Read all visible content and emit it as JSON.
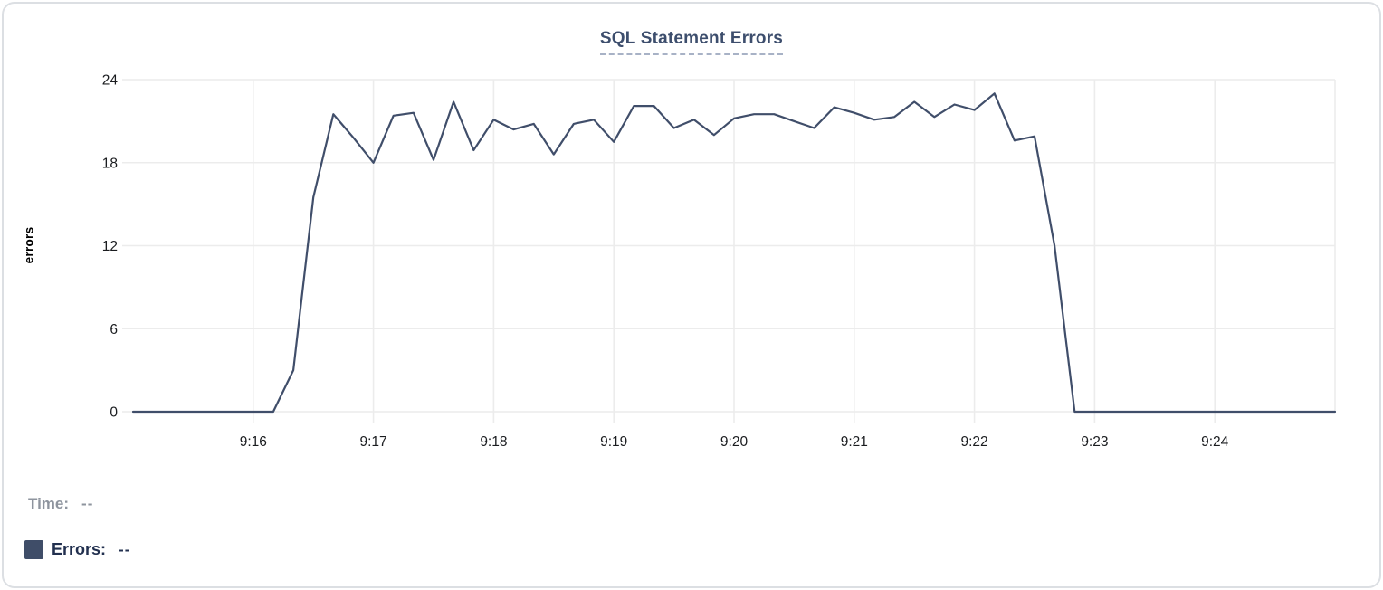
{
  "chart": {
    "title": "SQL Statement Errors",
    "ylabel": "errors"
  },
  "tooltip": {
    "time_label": "Time:",
    "time_value": "--",
    "errors_label": "Errors:",
    "errors_value": "--"
  },
  "colors": {
    "line": "#404e6a",
    "title": "#3d4e6d",
    "grid": "#ececec",
    "axis_text": "#1a1c1f",
    "time_muted": "#8e949e",
    "errors_text": "#22304f",
    "swatch": "#3f4d68",
    "title_underline": "#a8b2c6",
    "card_border": "#dcdfe3"
  },
  "chart_data": {
    "type": "line",
    "title": "SQL Statement Errors",
    "xlabel": "",
    "ylabel": "errors",
    "ylim": [
      0,
      24
    ],
    "y_ticks": [
      0,
      6,
      12,
      18,
      24
    ],
    "x_ticks": [
      "9:16",
      "9:17",
      "9:18",
      "9:19",
      "9:20",
      "9:21",
      "9:22",
      "9:23",
      "9:24"
    ],
    "x_range": [
      "9:15:00",
      "9:25:00"
    ],
    "grid": true,
    "legend_position": "bottom-left",
    "series": [
      {
        "name": "Errors",
        "color": "#404e6a",
        "x": [
          "9:15:00",
          "9:15:10",
          "9:15:20",
          "9:15:30",
          "9:15:40",
          "9:15:50",
          "9:16:00",
          "9:16:10",
          "9:16:20",
          "9:16:30",
          "9:16:40",
          "9:16:50",
          "9:17:00",
          "9:17:10",
          "9:17:20",
          "9:17:30",
          "9:17:40",
          "9:17:50",
          "9:18:00",
          "9:18:10",
          "9:18:20",
          "9:18:30",
          "9:18:40",
          "9:18:50",
          "9:19:00",
          "9:19:10",
          "9:19:20",
          "9:19:30",
          "9:19:40",
          "9:19:50",
          "9:20:00",
          "9:20:10",
          "9:20:20",
          "9:20:30",
          "9:20:40",
          "9:20:50",
          "9:21:00",
          "9:21:10",
          "9:21:20",
          "9:21:30",
          "9:21:40",
          "9:21:50",
          "9:22:00",
          "9:22:10",
          "9:22:20",
          "9:22:30",
          "9:22:40",
          "9:22:50",
          "9:23:00",
          "9:23:10",
          "9:23:20",
          "9:23:30",
          "9:23:40",
          "9:23:50",
          "9:24:00",
          "9:24:10",
          "9:24:20",
          "9:24:30",
          "9:24:40",
          "9:24:50",
          "9:25:00"
        ],
        "values": [
          0,
          0,
          0,
          0,
          0,
          0,
          0,
          0,
          3,
          15.5,
          21.5,
          19.8,
          18,
          21.4,
          21.6,
          18.2,
          22.4,
          18.9,
          21.1,
          20.4,
          20.8,
          18.6,
          20.8,
          21.1,
          19.5,
          22.1,
          22.1,
          20.5,
          21.1,
          20.0,
          21.2,
          21.5,
          21.5,
          21.0,
          20.5,
          22.0,
          21.6,
          21.1,
          21.3,
          22.4,
          21.3,
          22.2,
          21.8,
          23.0,
          19.6,
          19.9,
          12.0,
          0,
          0,
          0,
          0,
          0,
          0,
          0,
          0,
          0,
          0,
          0,
          0,
          0,
          0
        ]
      }
    ]
  }
}
